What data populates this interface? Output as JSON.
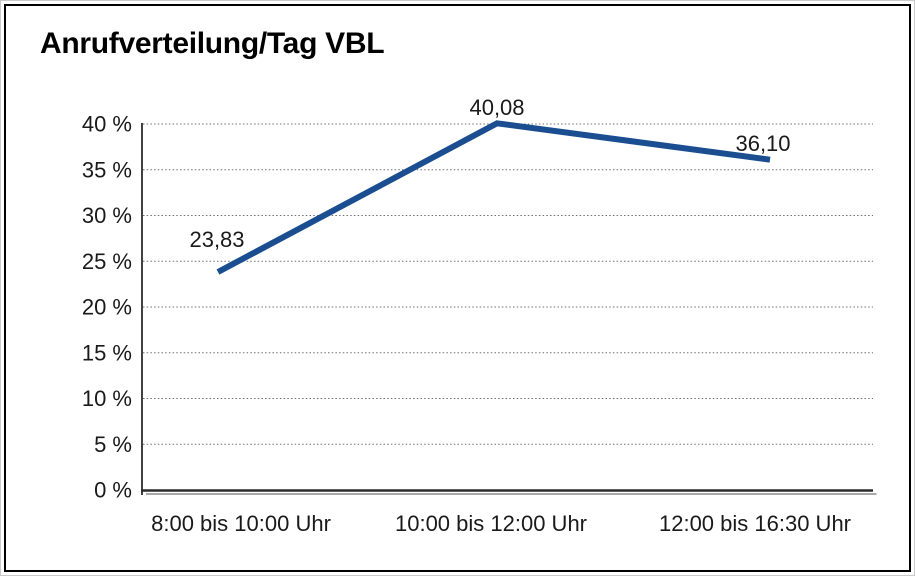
{
  "chart_data": {
    "type": "line",
    "title": "Anrufverteilung/Tag VBL",
    "categories": [
      "8:00 bis 10:00 Uhr",
      "10:00 bis 12:00 Uhr",
      "12:00 bis 16:30 Uhr"
    ],
    "values": [
      23.83,
      40.08,
      36.1
    ],
    "data_labels": [
      "23,83",
      "40,08",
      "36,10"
    ],
    "xlabel": "",
    "ylabel": "",
    "ylim": [
      0,
      40
    ],
    "ytick_step": 5,
    "ytick_labels": [
      "0 %",
      "5 %",
      "10 %",
      "15 %",
      "20 %",
      "25 %",
      "30 %",
      "35 %",
      "40 %"
    ],
    "legend": "none",
    "grid": "horizontal dotted gridlines at every 5%",
    "colors": {
      "line": "#1a4e91",
      "grid": "#707070",
      "axis": "#2b2b2b",
      "axis_shadow": "#a8a8a8",
      "text": "#1a1a1a",
      "background": "#ffffff",
      "border": "#000000"
    }
  }
}
